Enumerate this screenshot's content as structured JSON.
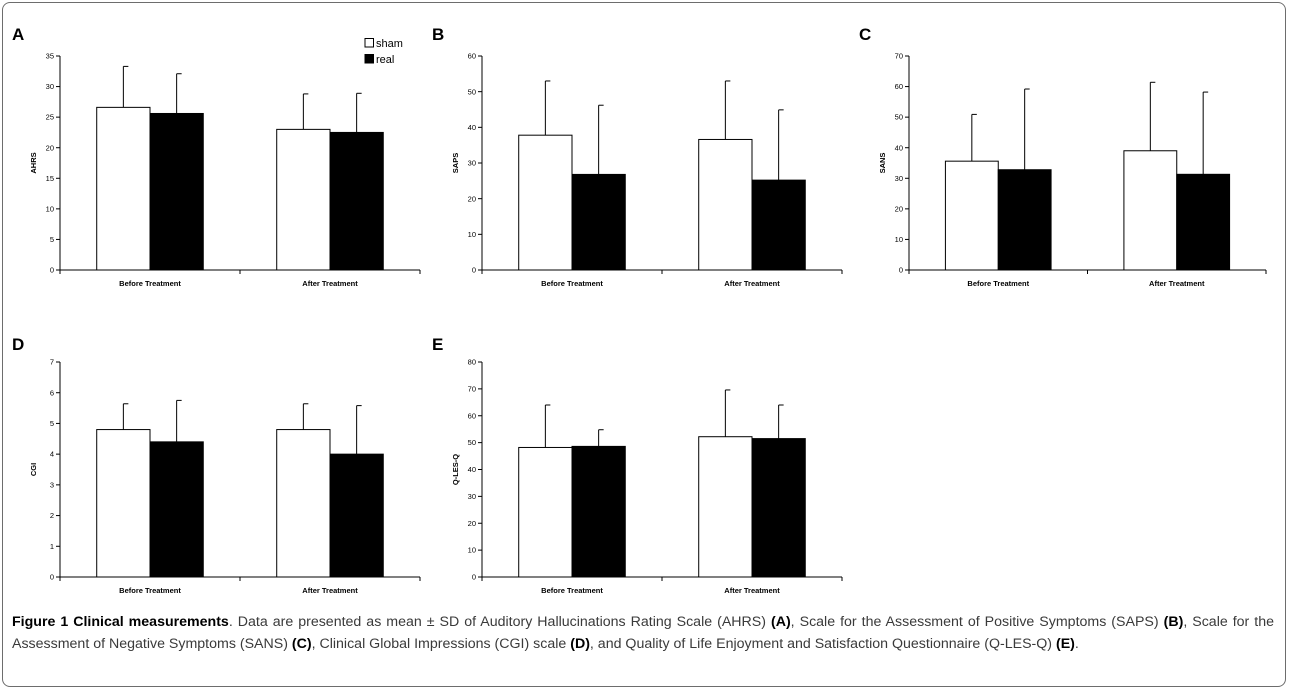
{
  "categories": [
    "Before Treatment",
    "After Treatment"
  ],
  "legend": {
    "items": [
      "sham",
      "real"
    ],
    "placement": "top-right of panel A"
  },
  "colors": {
    "sham": "#ffffff",
    "real": "#000000",
    "axis": "#000000"
  },
  "chart_data": [
    {
      "panel": "A",
      "type": "bar",
      "ylabel": "AHRS",
      "ylim": [
        0,
        35
      ],
      "yticks": [
        0,
        5,
        10,
        15,
        20,
        25,
        30,
        35
      ],
      "categories": [
        "Before Treatment",
        "After Treatment"
      ],
      "series": [
        {
          "name": "sham",
          "values": [
            26.6,
            23.0
          ],
          "sd": [
            6.7,
            5.8
          ]
        },
        {
          "name": "real",
          "values": [
            25.6,
            22.5
          ],
          "sd": [
            6.5,
            6.4
          ]
        }
      ]
    },
    {
      "panel": "B",
      "type": "bar",
      "ylabel": "SAPS",
      "ylim": [
        0,
        60
      ],
      "yticks": [
        0,
        10,
        20,
        30,
        40,
        50,
        60
      ],
      "categories": [
        "Before Treatment",
        "After Treatment"
      ],
      "series": [
        {
          "name": "sham",
          "values": [
            37.8,
            36.6
          ],
          "sd": [
            15.2,
            16.4
          ]
        },
        {
          "name": "real",
          "values": [
            26.8,
            25.2
          ],
          "sd": [
            19.4,
            19.7
          ]
        }
      ]
    },
    {
      "panel": "C",
      "type": "bar",
      "ylabel": "SANS",
      "ylim": [
        0,
        70
      ],
      "yticks": [
        0,
        10,
        20,
        30,
        40,
        50,
        60,
        70
      ],
      "categories": [
        "Before Treatment",
        "After Treatment"
      ],
      "series": [
        {
          "name": "sham",
          "values": [
            35.6,
            39.0
          ],
          "sd": [
            15.3,
            22.4
          ]
        },
        {
          "name": "real",
          "values": [
            32.8,
            31.3
          ],
          "sd": [
            26.4,
            26.9
          ]
        }
      ]
    },
    {
      "panel": "D",
      "type": "bar",
      "ylabel": "CGI",
      "ylim": [
        0,
        7
      ],
      "yticks": [
        0,
        1,
        2,
        3,
        4,
        5,
        6,
        7
      ],
      "categories": [
        "Before Treatment",
        "After Treatment"
      ],
      "series": [
        {
          "name": "sham",
          "values": [
            4.8,
            4.8
          ],
          "sd": [
            0.84,
            0.84
          ]
        },
        {
          "name": "real",
          "values": [
            4.4,
            4.0
          ],
          "sd": [
            1.35,
            1.58
          ]
        }
      ]
    },
    {
      "panel": "E",
      "type": "bar",
      "ylabel": "Q-LES-Q",
      "ylim": [
        0,
        80
      ],
      "yticks": [
        0,
        10,
        20,
        30,
        40,
        50,
        60,
        70,
        80
      ],
      "categories": [
        "Before Treatment",
        "After Treatment"
      ],
      "series": [
        {
          "name": "sham",
          "values": [
            48.2,
            52.2
          ],
          "sd": [
            15.8,
            17.4
          ]
        },
        {
          "name": "real",
          "values": [
            48.6,
            51.5
          ],
          "sd": [
            6.2,
            12.5
          ]
        }
      ]
    }
  ],
  "caption": {
    "label": "Figure 1 Clinical measurements",
    "part1": ". Data are presented as mean ± SD of Auditory Hallucinations Rating Scale (AHRS) ",
    "refA": "(A)",
    "part2": ", Scale for the Assessment of Positive Symptoms (SAPS) ",
    "refB": "(B)",
    "part3": ", Scale for the Assessment of Negative Symptoms (SANS) ",
    "refC": "(C)",
    "part4": ", Clinical Global Impressions (CGI) scale ",
    "refD": "(D)",
    "part5": ", and Quality of Life Enjoyment and Satisfaction Questionnaire (Q-LES-Q) ",
    "refE": "(E)",
    "part6": "."
  }
}
